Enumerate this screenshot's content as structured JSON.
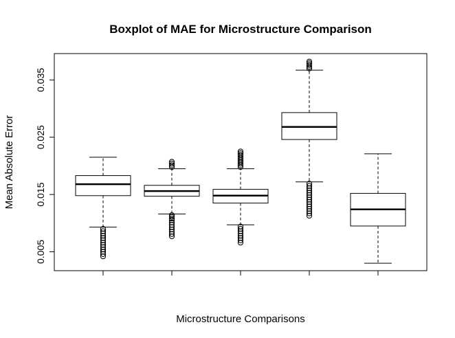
{
  "chart_data": {
    "type": "boxplot",
    "title": "Boxplot of MAE for Microstructure Comparison",
    "xlabel": "Microstructure Comparisons",
    "ylabel": "Mean Absolute Error",
    "ylim": [
      0.0017,
      0.0396
    ],
    "yticks": [
      0.005,
      0.015,
      0.025,
      0.035
    ],
    "ytick_labels": [
      "0.005",
      "0.015",
      "0.025",
      "0.035"
    ],
    "categories": [
      "",
      "",
      "",
      "",
      ""
    ],
    "grid": false,
    "boxes": [
      {
        "whisker_low": 0.0093,
        "q1": 0.0148,
        "median": 0.0168,
        "q3": 0.0183,
        "whisker_high": 0.0215,
        "outliers_low": [
          0.0042,
          0.0046,
          0.005,
          0.0054,
          0.0058,
          0.0062,
          0.0066,
          0.007,
          0.0074,
          0.0078,
          0.0082,
          0.0086,
          0.009
        ],
        "outliers_high": []
      },
      {
        "whisker_low": 0.0116,
        "q1": 0.0147,
        "median": 0.0156,
        "q3": 0.0166,
        "whisker_high": 0.0195,
        "outliers_low": [
          0.0077,
          0.0081,
          0.0085,
          0.0089,
          0.0093,
          0.0097,
          0.0101,
          0.0105,
          0.0108,
          0.0111,
          0.0114
        ],
        "outliers_high": [
          0.0198,
          0.0201,
          0.0204,
          0.0207
        ]
      },
      {
        "whisker_low": 0.0097,
        "q1": 0.0135,
        "median": 0.0148,
        "q3": 0.0159,
        "whisker_high": 0.0195,
        "outliers_low": [
          0.0066,
          0.007,
          0.0074,
          0.0078,
          0.0082,
          0.0086,
          0.009,
          0.0094
        ],
        "outliers_high": [
          0.0198,
          0.0201,
          0.0204,
          0.0207,
          0.021,
          0.0213,
          0.0216,
          0.0219,
          0.0222,
          0.0225
        ]
      },
      {
        "whisker_low": 0.0172,
        "q1": 0.0246,
        "median": 0.0268,
        "q3": 0.0293,
        "whisker_high": 0.0367,
        "outliers_low": [
          0.0113,
          0.0117,
          0.0121,
          0.0125,
          0.0129,
          0.0133,
          0.0137,
          0.0141,
          0.0145,
          0.0149,
          0.0153,
          0.0157,
          0.0161,
          0.0165,
          0.0169
        ],
        "outliers_high": [
          0.037,
          0.0373,
          0.0376,
          0.0379,
          0.0382
        ]
      },
      {
        "whisker_low": 0.003,
        "q1": 0.0095,
        "median": 0.0124,
        "q3": 0.0152,
        "whisker_high": 0.0221,
        "outliers_low": [],
        "outliers_high": []
      }
    ]
  }
}
